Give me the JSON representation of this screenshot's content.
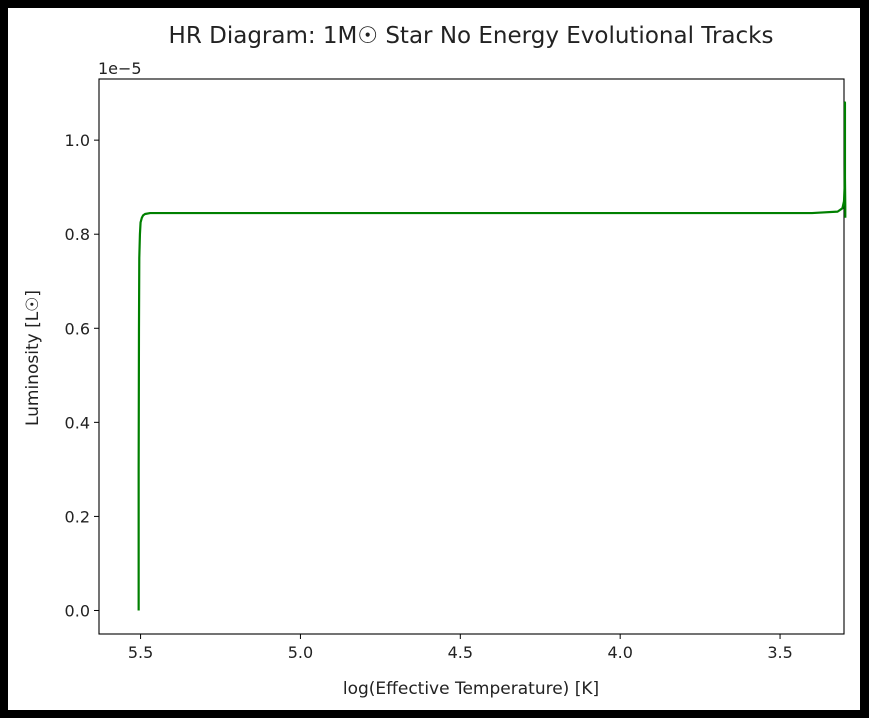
{
  "chart_data": {
    "type": "line",
    "title": "HR Diagram: 1M☉ Star No Energy Evolutional Tracks",
    "xlabel": "log(Effective Temperature) [K]",
    "ylabel": "Luminosity [L☉]",
    "y_offset_label": "1e−5",
    "xlim": [
      5.63,
      3.3
    ],
    "x_inverted": true,
    "ylim": [
      -0.05,
      1.13
    ],
    "y_multiplier": 1e-05,
    "xticks": [
      5.5,
      5.0,
      4.5,
      4.0,
      3.5
    ],
    "xtick_labels": [
      "5.5",
      "5.0",
      "4.5",
      "4.0",
      "3.5"
    ],
    "yticks": [
      0.0,
      0.2,
      0.4,
      0.6,
      0.8,
      1.0
    ],
    "ytick_labels": [
      "0.0",
      "0.2",
      "0.4",
      "0.6",
      "0.8",
      "1.0"
    ],
    "grid": false,
    "series": [
      {
        "color": "#008000",
        "x": [
          5.506,
          5.506,
          5.505,
          5.504,
          5.502,
          5.5,
          5.496,
          5.492,
          5.486,
          5.47,
          5.4,
          5.0,
          4.5,
          4.0,
          3.6,
          3.4,
          3.32,
          3.305,
          3.3,
          3.298,
          3.297,
          3.297,
          3.297,
          3.297,
          3.296,
          3.296
        ],
        "y": [
          0.0,
          0.3,
          0.6,
          0.75,
          0.8,
          0.825,
          0.835,
          0.84,
          0.843,
          0.845,
          0.845,
          0.845,
          0.845,
          0.845,
          0.845,
          0.845,
          0.848,
          0.855,
          0.87,
          0.9,
          0.95,
          1.0,
          1.08,
          0.92,
          0.86,
          0.835
        ]
      }
    ]
  }
}
